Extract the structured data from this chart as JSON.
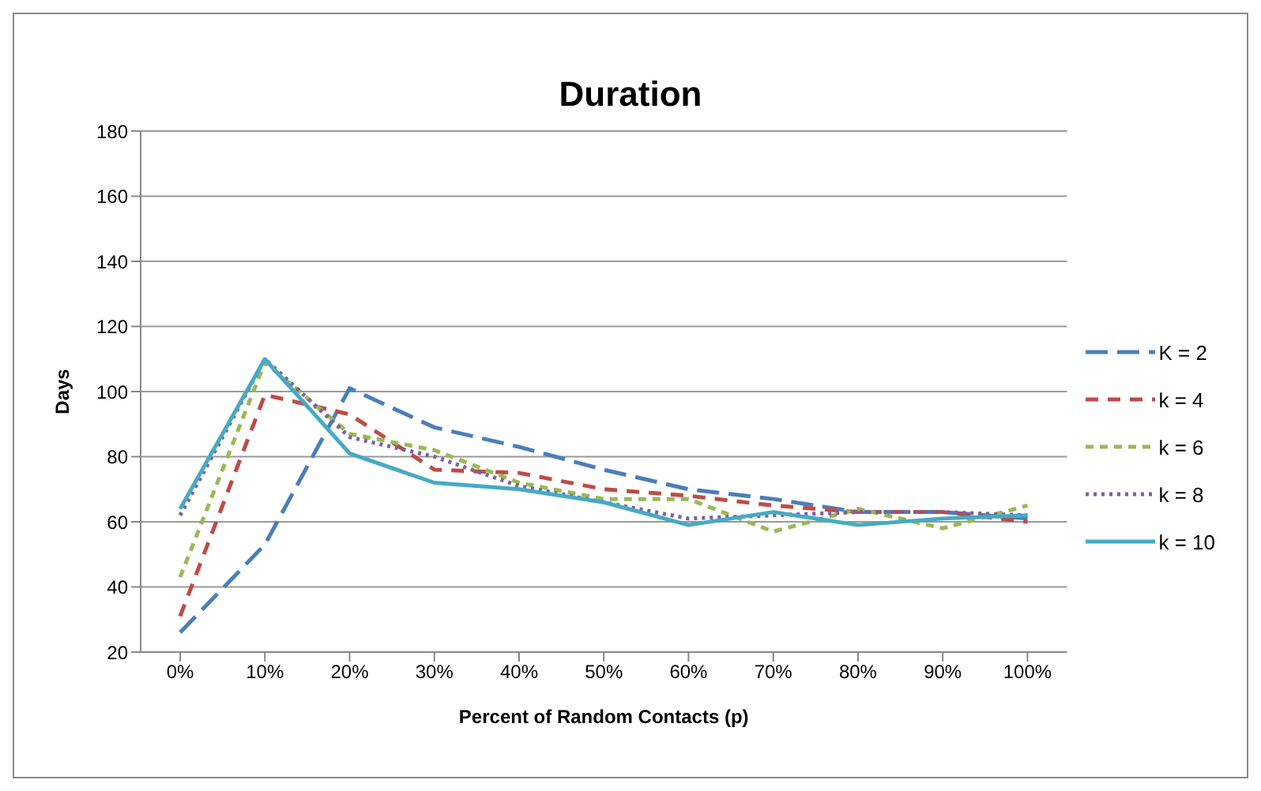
{
  "chart_data": {
    "type": "line",
    "title": "Duration",
    "xlabel": "Percent of Random Contacts (p)",
    "ylabel": "Days",
    "categories": [
      "0%",
      "10%",
      "20%",
      "30%",
      "40%",
      "50%",
      "60%",
      "70%",
      "80%",
      "90%",
      "100%"
    ],
    "series": [
      {
        "name": "K = 2",
        "color": "#4a7ebb",
        "line_style": "dashed",
        "values": [
          26,
          53,
          101,
          89,
          83,
          76,
          70,
          67,
          63,
          63,
          61
        ]
      },
      {
        "name": "k = 4",
        "color": "#be4b48",
        "line_style": "dashed",
        "values": [
          31,
          99,
          93,
          76,
          75,
          70,
          68,
          65,
          63,
          63,
          60
        ]
      },
      {
        "name": "k = 6",
        "color": "#98b954",
        "line_style": "dashed",
        "values": [
          43,
          109,
          87,
          82,
          72,
          67,
          67,
          57,
          64,
          58,
          65
        ]
      },
      {
        "name": "k = 8",
        "color": "#7d60a0",
        "line_style": "dotted",
        "values": [
          62,
          110,
          86,
          80,
          71,
          66,
          61,
          62,
          63,
          63,
          62
        ]
      },
      {
        "name": "k = 10",
        "color": "#46aac5",
        "line_style": "solid",
        "values": [
          64,
          110,
          81,
          72,
          70,
          66,
          59,
          63,
          59,
          61,
          62
        ]
      }
    ],
    "ylim": [
      20,
      180
    ],
    "yticks": [
      20,
      40,
      60,
      80,
      100,
      120,
      140,
      160,
      180
    ],
    "grid": "y",
    "legend": "right",
    "marker": "none"
  }
}
